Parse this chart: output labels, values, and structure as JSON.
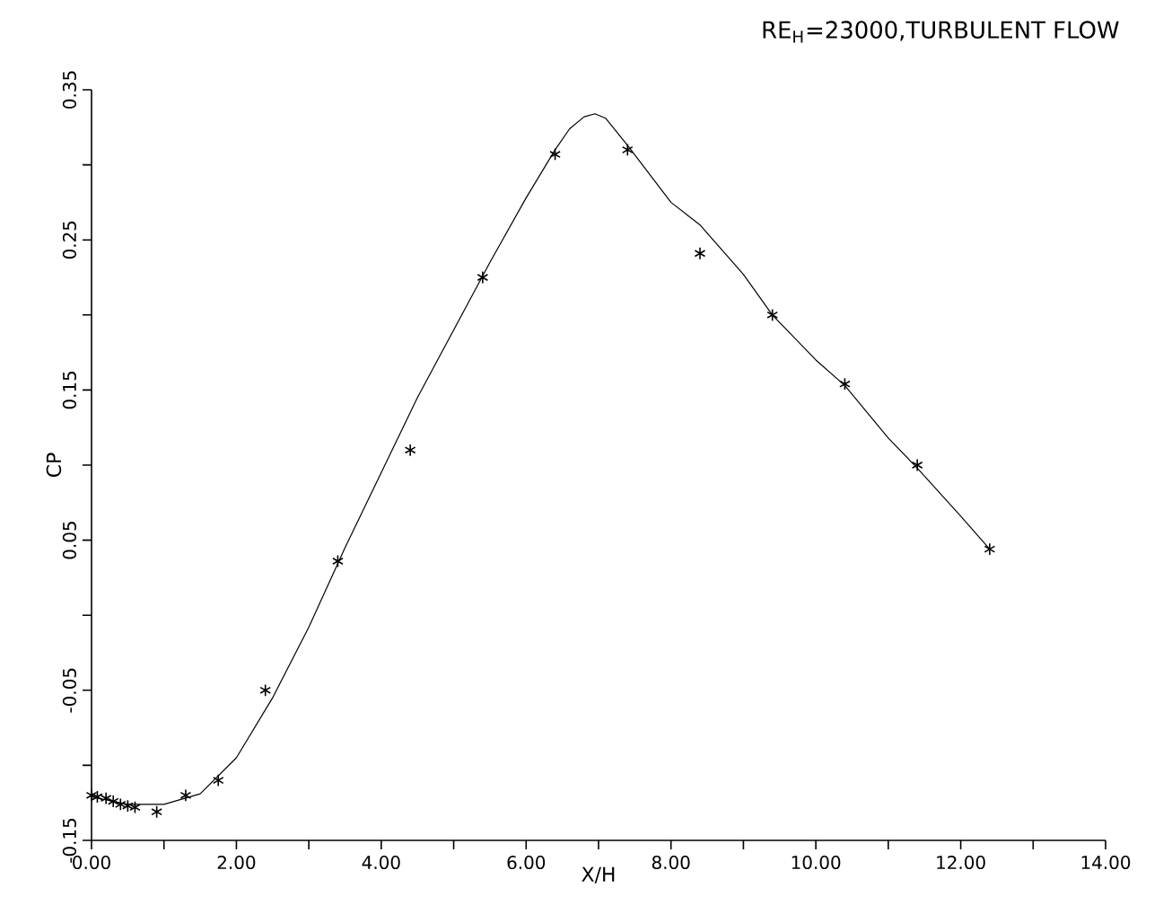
{
  "chart_data": {
    "type": "scatter",
    "title": "RE$_{H}$=23000,TURBULENT FLOW",
    "xlabel": "X/H",
    "ylabel": "CP",
    "xlim": [
      0,
      14
    ],
    "ylim": [
      -0.15,
      0.35
    ],
    "xticks": [
      {
        "value": 0,
        "label": "0.00"
      },
      {
        "value": 1,
        "label": null
      },
      {
        "value": 2,
        "label": "2.00"
      },
      {
        "value": 3,
        "label": null
      },
      {
        "value": 4,
        "label": "4.00"
      },
      {
        "value": 5,
        "label": null
      },
      {
        "value": 6,
        "label": "6.00"
      },
      {
        "value": 7,
        "label": null
      },
      {
        "value": 8,
        "label": "8.00"
      },
      {
        "value": 9,
        "label": null
      },
      {
        "value": 10,
        "label": "10.00"
      },
      {
        "value": 11,
        "label": null
      },
      {
        "value": 12,
        "label": "12.00"
      },
      {
        "value": 13,
        "label": null
      },
      {
        "value": 14,
        "label": "14.00"
      }
    ],
    "yticks": [
      -0.15,
      {
        "value": -0.1,
        "label": null
      },
      -0.05,
      {
        "value": 0.0,
        "label": null
      },
      0.05,
      {
        "value": 0.1,
        "label": null
      },
      0.15,
      {
        "value": 0.2,
        "label": null
      },
      0.25,
      {
        "value": 0.3,
        "label": null
      },
      0.35
    ],
    "grid": false,
    "series": [
      {
        "color": "#000000",
        "marker": "cross",
        "x": [
          0.0,
          0.08,
          0.2,
          0.3,
          0.4,
          0.5,
          0.6,
          0.9,
          1.3,
          1.75,
          2.4,
          3.4,
          4.4,
          5.4,
          6.4,
          7.4,
          8.4,
          9.4,
          10.4,
          11.4,
          12.4
        ],
        "values": [
          -0.12,
          -0.121,
          -0.122,
          -0.124,
          -0.126,
          -0.127,
          -0.128,
          -0.131,
          -0.12,
          -0.11,
          -0.05,
          0.036,
          0.11,
          0.225,
          0.307,
          0.31,
          0.241,
          0.2,
          0.154,
          0.1,
          0.044
        ]
      },
      {
        "type": "line",
        "color": "#000000",
        "marker": "none",
        "line_style": "solid",
        "x": [
          0.0,
          0.5,
          1.0,
          1.5,
          2.0,
          2.5,
          3.0,
          3.5,
          4.0,
          4.5,
          5.0,
          5.5,
          6.0,
          6.4,
          6.6,
          6.8,
          6.95,
          7.1,
          7.4,
          8.0,
          8.4,
          9.0,
          9.4,
          10.0,
          10.4,
          11.0,
          11.4,
          12.0,
          12.4
        ],
        "values": [
          -0.121,
          -0.126,
          -0.126,
          -0.119,
          -0.095,
          -0.055,
          -0.008,
          0.045,
          0.095,
          0.145,
          0.19,
          0.235,
          0.278,
          0.31,
          0.324,
          0.332,
          0.334,
          0.331,
          0.313,
          0.275,
          0.26,
          0.227,
          0.2,
          0.17,
          0.153,
          0.118,
          0.098,
          0.066,
          0.044
        ]
      }
    ]
  }
}
